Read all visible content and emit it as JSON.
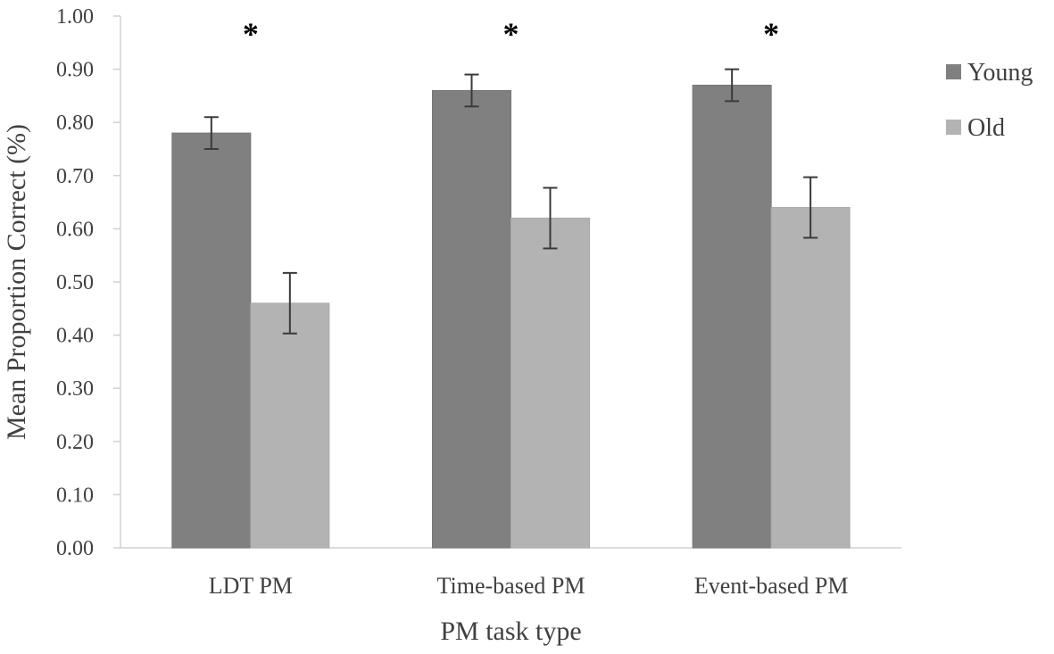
{
  "chart_data": {
    "type": "bar",
    "title": "",
    "xlabel": "PM task type",
    "ylabel": "Mean Proportion Correct (%)",
    "ylim": [
      0,
      1
    ],
    "yticks": [
      "0.00",
      "0.10",
      "0.20",
      "0.30",
      "0.40",
      "0.50",
      "0.60",
      "0.70",
      "0.80",
      "0.90",
      "1.00"
    ],
    "categories": [
      "LDT PM",
      "Time-based PM",
      "Event-based PM"
    ],
    "series": [
      {
        "name": "Young",
        "color": "#808080",
        "values": [
          0.78,
          0.86,
          0.87
        ],
        "error": [
          0.03,
          0.03,
          0.03
        ]
      },
      {
        "name": "Old",
        "color": "#b3b3b3",
        "values": [
          0.46,
          0.62,
          0.64
        ],
        "error": [
          0.057,
          0.057,
          0.057
        ]
      }
    ],
    "annotations": [
      "*",
      "*",
      "*"
    ],
    "legend_position": "top-right",
    "grid": false
  }
}
